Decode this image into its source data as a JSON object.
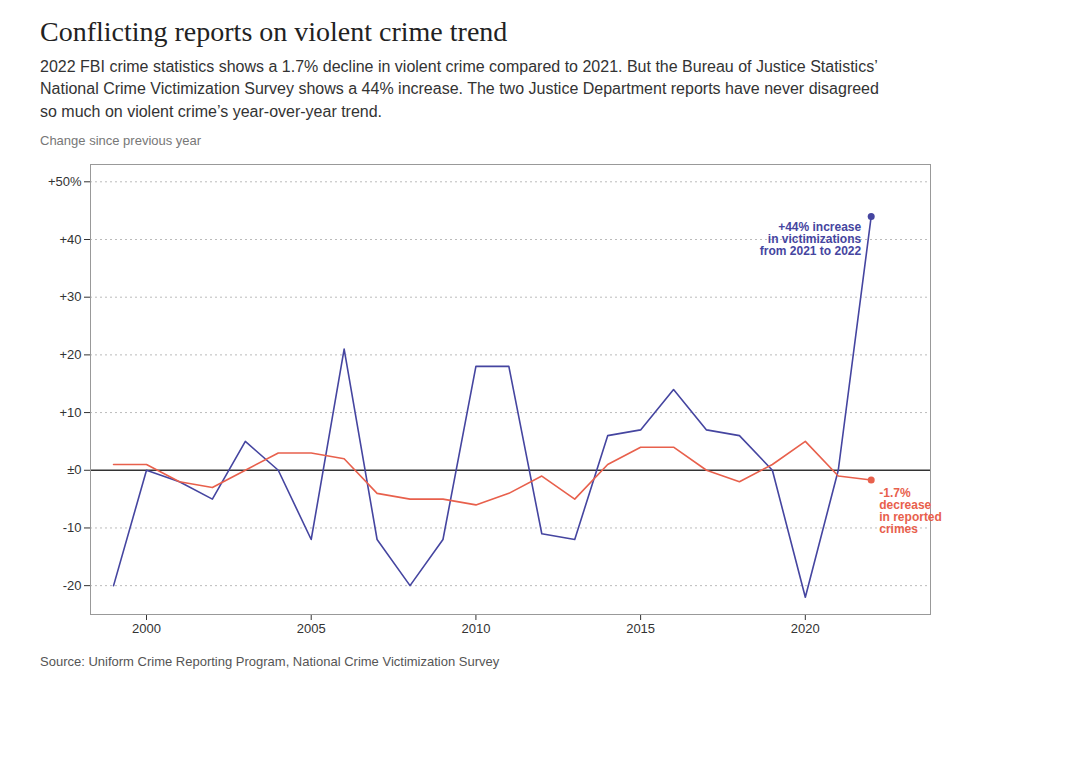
{
  "chart_data": {
    "type": "line",
    "title": "Conflicting reports on violent crime trend",
    "subtitle": "2022 FBI crime statistics shows a 1.7% decline in violent crime compared to 2021. But the Bureau of Justice Statistics’ National Crime Victimization Survey shows a 44% increase. The two Justice Department reports have never disagreed so much on violent crime’s year-over-year trend.",
    "caption": "Source: Uniform Crime Reporting Program, National Crime Victimization Survey",
    "ylabel": "Change since previous year",
    "x": [
      1999,
      2000,
      2001,
      2002,
      2003,
      2004,
      2005,
      2006,
      2007,
      2008,
      2009,
      2010,
      2011,
      2012,
      2013,
      2014,
      2015,
      2016,
      2017,
      2018,
      2019,
      2020,
      2021,
      2022
    ],
    "series": [
      {
        "color": "#4545a0",
        "values": [
          -20,
          0,
          -2,
          -5,
          5,
          0,
          -12,
          21,
          -12,
          -20,
          -12,
          18,
          18,
          -11,
          -12,
          6,
          7,
          14,
          7,
          6,
          0,
          -22,
          0,
          44
        ]
      },
      {
        "color": "#e8604c",
        "values": [
          1,
          1,
          -2,
          -3,
          0,
          3,
          3,
          2,
          -4,
          -5,
          -5,
          -6,
          -4,
          -1,
          -5,
          1,
          4,
          4,
          0,
          -2,
          1,
          5,
          -1,
          -1.7
        ]
      }
    ],
    "xlim": [
      1998.3,
      2023.8
    ],
    "xticks": [
      2000,
      2005,
      2010,
      2015,
      2020
    ],
    "ylim": [
      -25,
      53
    ],
    "yticks": [
      -20,
      -10,
      {
        "value": 0,
        "label": "±0"
      },
      {
        "value": 10,
        "label": "+10"
      },
      {
        "value": 20,
        "label": "+20"
      },
      {
        "value": 30,
        "label": "+30"
      },
      {
        "value": 40,
        "label": "+40"
      },
      {
        "value": 50,
        "label": "+50%"
      }
    ],
    "grid": true,
    "annotations": [
      {
        "text": "+44% increase\nin victimizations\nfrom 2021 to 2022",
        "x": 2022,
        "y": 44,
        "color": "#4545a0"
      },
      {
        "text": "-1.7%\ndecrease\nin reported\ncrimes",
        "x": 2022,
        "y": -1.7,
        "color": "#e8604c"
      }
    ]
  }
}
